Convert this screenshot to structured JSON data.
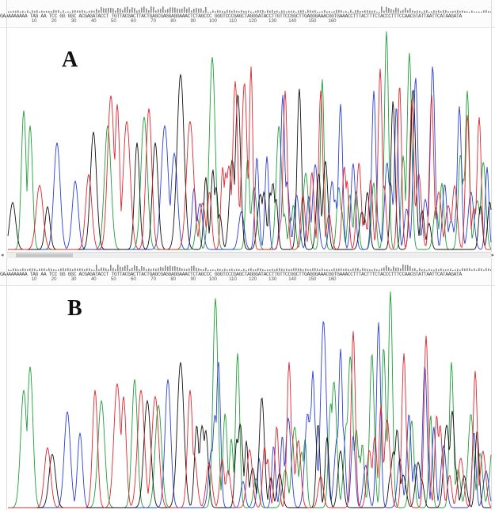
{
  "panels": [
    {
      "label": "A",
      "sequence": "GAAAAAAAAA TAG AA TCC GG GGC ACGAGATACCT TGTTACGACTTACTGAGCGAGGAGGAAACTCTAGCCC GGGTCCCGAGCTAGGGATACCTTGTTCCGGCTTGAGGGAAACGGTGAAACCTTTACTTTCTACCCTTTCCAACGTATTAATTCATAAGATA",
      "ticks": [
        "10",
        "20",
        "30",
        "40",
        "50",
        "60",
        "70",
        "80",
        "90",
        "100",
        "110",
        "120",
        "130",
        "140",
        "150",
        "160"
      ]
    },
    {
      "label": "B",
      "sequence": "GAAAAAAAAA TAG AA TCC GG GGC ACGAGATACCT TGTTACGACTTACTGAGCGAGGAGGAAACTCTAGCCC GGGTCCCGAGCTAGGGATACCTTGTTCCGGCTTGAGGGAAACGGTGAAACCTTTACTTTCTACCCTTTCCAACGTATTAATTCATAAGATA",
      "ticks": [
        "10",
        "20",
        "30",
        "40",
        "50",
        "60",
        "70",
        "80",
        "90",
        "100",
        "110",
        "120",
        "130",
        "140",
        "150",
        "160"
      ]
    }
  ],
  "trace_colors": {
    "A": "#1f9e3a",
    "C": "#2c3fd6",
    "G": "#111111",
    "T": "#e0262e"
  },
  "scroll_arrows": {
    "left": "◂",
    "right": "▸"
  }
}
